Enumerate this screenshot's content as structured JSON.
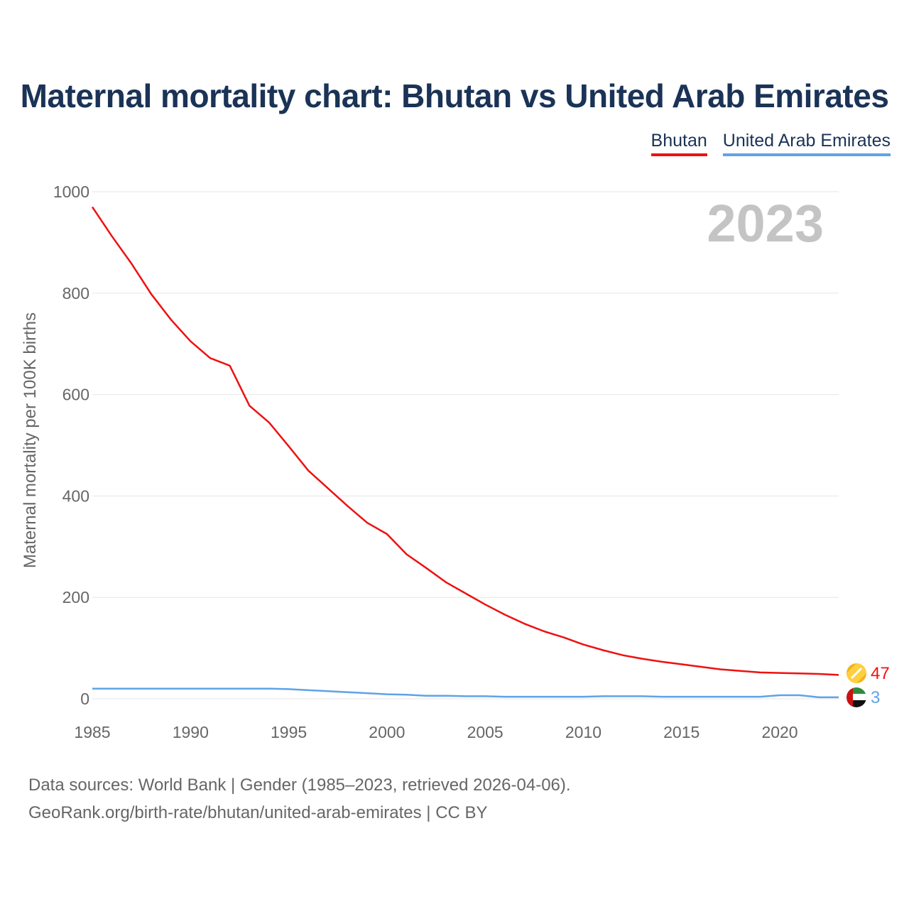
{
  "title": "Maternal mortality chart: Bhutan vs United Arab Emirates",
  "year_watermark": "2023",
  "footer": {
    "line1": "Data sources: World Bank | Gender (1985–2023, retrieved 2026-04-06).",
    "line2": "GeoRank.org/birth-rate/bhutan/united-arab-emirates | CC BY"
  },
  "colors": {
    "bhutan": "#ee1111",
    "uae": "#5fa3e6",
    "grid": "#e6e6e6",
    "tick": "#666666"
  },
  "chart_data": {
    "type": "line",
    "ylabel": "Maternal mortality per 100K births",
    "xlabel": "",
    "xlim": [
      1985,
      2023
    ],
    "ylim": [
      0,
      1000
    ],
    "xticks": [
      1985,
      1990,
      1995,
      2000,
      2005,
      2010,
      2015,
      2020
    ],
    "yticks": [
      0,
      200,
      400,
      600,
      800,
      1000
    ],
    "legend_position": "top-right",
    "x": [
      1985,
      1986,
      1987,
      1988,
      1989,
      1990,
      1991,
      1992,
      1993,
      1994,
      1995,
      1996,
      1997,
      1998,
      1999,
      2000,
      2001,
      2002,
      2003,
      2004,
      2005,
      2006,
      2007,
      2008,
      2009,
      2010,
      2011,
      2012,
      2013,
      2014,
      2015,
      2016,
      2017,
      2018,
      2019,
      2020,
      2021,
      2022,
      2023
    ],
    "series": [
      {
        "name": "Bhutan",
        "color": "#ee1111",
        "end_label": "47",
        "flag_icon": "bhutan-flag-icon",
        "values": [
          970,
          912,
          858,
          798,
          748,
          705,
          672,
          657,
          578,
          545,
          498,
          450,
          415,
          380,
          347,
          325,
          285,
          258,
          230,
          208,
          186,
          166,
          148,
          133,
          121,
          107,
          96,
          86,
          79,
          73,
          68,
          63,
          58,
          55,
          52,
          51,
          50,
          49,
          47
        ]
      },
      {
        "name": "United Arab Emirates",
        "color": "#5fa3e6",
        "end_label": "3",
        "flag_icon": "uae-flag-icon",
        "values": [
          20,
          20,
          20,
          20,
          20,
          20,
          20,
          20,
          20,
          20,
          19,
          17,
          15,
          13,
          11,
          9,
          8,
          6,
          6,
          5,
          5,
          4,
          4,
          4,
          4,
          4,
          5,
          5,
          5,
          4,
          4,
          4,
          4,
          4,
          4,
          7,
          7,
          3,
          3
        ]
      }
    ]
  }
}
